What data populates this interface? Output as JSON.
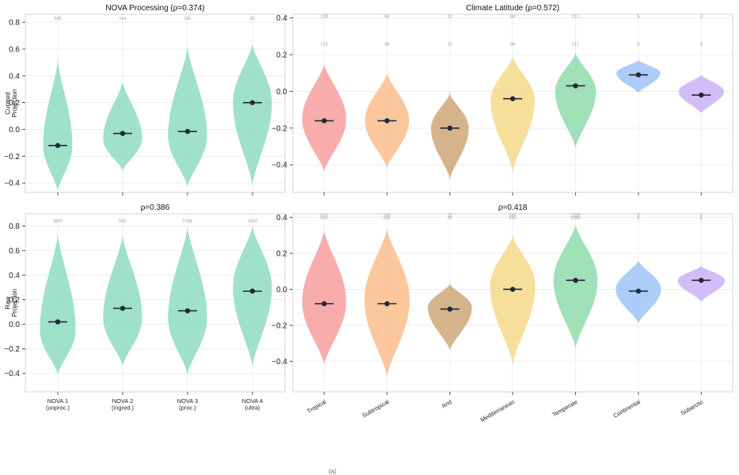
{
  "figure": {
    "footer": "(a)"
  },
  "chart_data": [
    {
      "id": "nova_curated",
      "type": "violin",
      "title": "NOVA Processing (ρ=0.374)",
      "ylabel": [
        "Curated",
        "Projection"
      ],
      "ylim": [
        -0.47,
        0.86
      ],
      "yticks": [
        -0.4,
        -0.2,
        0.0,
        0.2,
        0.4,
        0.6,
        0.8
      ],
      "ytick_labels": [
        "−0.4",
        "−0.2",
        "0.0",
        "0.2",
        "0.4",
        "0.6",
        "0.8"
      ],
      "categories": [
        [
          "NOVA 1",
          "(unproc.)"
        ],
        [
          "NOVA 2",
          "(ingred.)"
        ],
        [
          "NOVA 3",
          "(proc.)"
        ],
        [
          "NOVA 4",
          "(ultra)"
        ]
      ],
      "show_xlabels": false,
      "colors": [
        "#8fdcbf",
        "#8fdcbf",
        "#8fdcbf",
        "#8fdcbf"
      ],
      "counts": [
        "545",
        "104",
        "290",
        "92"
      ],
      "count_rows": [
        0.82
      ],
      "medians": [
        -0.12,
        -0.03,
        -0.015,
        0.2
      ],
      "ranges": [
        [
          -0.46,
          0.52
        ],
        [
          -0.31,
          0.36
        ],
        [
          -0.43,
          0.62
        ],
        [
          -0.42,
          0.64
        ]
      ],
      "modes": [
        -0.12,
        -0.07,
        -0.05,
        0.2
      ],
      "peak_widths": [
        0.45,
        0.6,
        0.6,
        0.6
      ]
    },
    {
      "id": "climate_curated",
      "type": "violin",
      "title": "Climate Latitude (ρ=0.572)",
      "ylabel": [],
      "ylim": [
        -0.55,
        0.42
      ],
      "yticks": [
        -0.4,
        -0.2,
        0.0,
        0.2,
        0.4
      ],
      "ytick_labels": [
        "−0.4",
        "−0.2",
        "0.0",
        "0.2",
        "0.4"
      ],
      "categories": [
        "Tropical",
        "Subtropical",
        "Arid",
        "Mediterranean",
        "Temperate",
        "Continental",
        "Subarctic"
      ],
      "show_xlabels": false,
      "colors": [
        "#f79e9e",
        "#fbbd8c",
        "#cfa777",
        "#f3d98a",
        "#8fdcac",
        "#9fc3f7",
        "#cbb2f8"
      ],
      "counts": [
        "129",
        "66",
        "11",
        "84",
        "211",
        "5",
        "3"
      ],
      "count_rows": [
        0.4,
        0.25
      ],
      "medians": [
        -0.16,
        -0.16,
        -0.2,
        -0.04,
        0.03,
        0.09,
        -0.02
      ],
      "ranges": [
        [
          -0.44,
          0.15
        ],
        [
          -0.42,
          0.1
        ],
        [
          -0.48,
          -0.01
        ],
        [
          -0.44,
          0.19
        ],
        [
          -0.31,
          0.21
        ],
        [
          -0.01,
          0.17
        ],
        [
          -0.12,
          0.09
        ]
      ],
      "modes": [
        -0.15,
        -0.16,
        -0.2,
        -0.05,
        0.0,
        0.1,
        0.0
      ],
      "peak_widths": [
        0.7,
        0.7,
        0.6,
        0.7,
        0.65,
        0.7,
        0.72
      ]
    },
    {
      "id": "nova_raw",
      "type": "violin",
      "title": "ρ=0.386",
      "ylabel": [
        "Raw",
        "Projection"
      ],
      "ylim": [
        -0.55,
        0.9
      ],
      "yticks": [
        -0.4,
        -0.2,
        0.0,
        0.2,
        0.4,
        0.6,
        0.8
      ],
      "ytick_labels": [
        "−0.4",
        "−0.2",
        "0.0",
        "0.2",
        "0.4",
        "0.6",
        "0.8"
      ],
      "categories": [
        [
          "NOVA 1",
          "(unproc.)"
        ],
        [
          "NOVA 2",
          "(ingred.)"
        ],
        [
          "NOVA 3",
          "(proc.)"
        ],
        [
          "NOVA 4",
          "(ultra)"
        ]
      ],
      "show_xlabels": true,
      "colors": [
        "#8fdcbf",
        "#8fdcbf",
        "#8fdcbf",
        "#8fdcbf"
      ],
      "counts": [
        "3870",
        "533",
        "1708",
        "1542"
      ],
      "count_rows": [
        0.83
      ],
      "medians": [
        0.02,
        0.13,
        0.11,
        0.27
      ],
      "ranges": [
        [
          -0.41,
          0.74
        ],
        [
          -0.34,
          0.73
        ],
        [
          -0.41,
          0.8
        ],
        [
          -0.35,
          0.8
        ]
      ],
      "modes": [
        -0.05,
        0.05,
        0.05,
        0.3
      ],
      "peak_widths": [
        0.55,
        0.6,
        0.6,
        0.6
      ]
    },
    {
      "id": "climate_raw",
      "type": "violin",
      "title": "ρ=0.418",
      "ylabel": [],
      "ylim": [
        -0.57,
        0.42
      ],
      "yticks": [
        -0.4,
        -0.2,
        0.0,
        0.2,
        0.4
      ],
      "ytick_labels": [
        "−0.4",
        "−0.2",
        "0.0",
        "0.2",
        "0.4"
      ],
      "categories": [
        "Tropical",
        "Subtropical",
        "Arid",
        "Mediterranean",
        "Temperate",
        "Continental",
        "Subarctic"
      ],
      "show_xlabels": true,
      "colors": [
        "#f79e9e",
        "#fbbd8c",
        "#cfa777",
        "#f3d98a",
        "#8fdcac",
        "#9fc3f7",
        "#cbb2f8"
      ],
      "counts": [
        "535",
        "595",
        "25",
        "565",
        "1099",
        "5",
        "6"
      ],
      "count_rows": [
        0.405,
        0.39
      ],
      "medians": [
        -0.08,
        -0.08,
        -0.11,
        0.0,
        0.05,
        -0.01,
        0.05
      ],
      "ranges": [
        [
          -0.42,
          0.33
        ],
        [
          -0.49,
          0.34
        ],
        [
          -0.34,
          0.03
        ],
        [
          -0.42,
          0.3
        ],
        [
          -0.33,
          0.36
        ],
        [
          -0.19,
          0.16
        ],
        [
          -0.07,
          0.13
        ]
      ],
      "modes": [
        -0.07,
        -0.06,
        -0.1,
        0.02,
        0.05,
        0.0,
        0.05
      ],
      "peak_widths": [
        0.7,
        0.72,
        0.7,
        0.72,
        0.7,
        0.72,
        0.75
      ]
    }
  ]
}
